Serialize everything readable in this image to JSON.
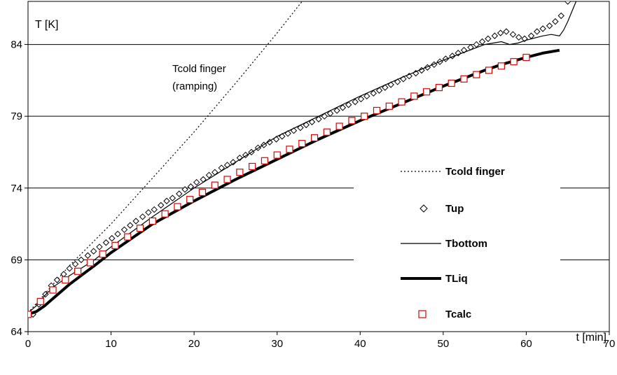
{
  "chart_data": {
    "type": "line",
    "xlabel": "t [min]",
    "ylabel": "T [K]",
    "xlim": [
      0,
      70
    ],
    "ylim": [
      64,
      87
    ],
    "xticks": [
      "0",
      "10",
      "20",
      "30",
      "40",
      "50",
      "60",
      "70"
    ],
    "yticks": [
      "64",
      "69",
      "74",
      "79",
      "84"
    ],
    "ytick_values": [
      64,
      69,
      74,
      79,
      84
    ],
    "xtick_values": [
      0,
      10,
      20,
      30,
      40,
      50,
      60,
      70
    ],
    "grid": "horizontal",
    "legend_position": "bottom-right",
    "annotation": [
      "Tcold finger",
      "(ramping)"
    ],
    "series": [
      {
        "name": "Tcold finger",
        "style": "dotted",
        "x": [
          0,
          5,
          10,
          15,
          20,
          25,
          30,
          33
        ],
        "y": [
          65.3,
          68.6,
          71.5,
          74.7,
          77.9,
          81.3,
          84.8,
          87.0
        ]
      },
      {
        "name": "Tup",
        "style": "diamond",
        "x": [
          0.6,
          1.3,
          2.1,
          2.8,
          3.5,
          4.3,
          5.0,
          5.7,
          6.4,
          7.2,
          7.9,
          8.6,
          9.4,
          10.1,
          10.8,
          11.6,
          12.3,
          13.0,
          13.8,
          14.5,
          15.2,
          16.0,
          16.7,
          17.4,
          18.2,
          18.9,
          19.6,
          20.3,
          21.1,
          21.8,
          22.5,
          23.3,
          24.0,
          24.7,
          25.5,
          26.2,
          26.9,
          27.7,
          28.4,
          29.1,
          29.9,
          30.6,
          31.3,
          32.0,
          32.8,
          33.5,
          34.2,
          35.0,
          35.7,
          36.4,
          37.2,
          37.9,
          38.6,
          39.4,
          40.1,
          40.8,
          41.6,
          42.3,
          43.0,
          43.7,
          44.5,
          45.2,
          45.9,
          46.7,
          47.4,
          48.1,
          48.9,
          49.6,
          50.3,
          51.1,
          51.8,
          52.5,
          53.3,
          54.0,
          54.7,
          55.4,
          56.2,
          56.9,
          57.6,
          58.4,
          59.1,
          59.8,
          60.6,
          61.3,
          62.0,
          62.8,
          63.5,
          64.2,
          65.0,
          65.7
        ],
        "y": [
          65.2,
          65.9,
          66.6,
          67.2,
          67.6,
          68.0,
          68.4,
          68.7,
          69.0,
          69.3,
          69.6,
          69.9,
          70.2,
          70.5,
          70.8,
          71.1,
          71.4,
          71.7,
          72.0,
          72.3,
          72.5,
          72.8,
          73.1,
          73.3,
          73.6,
          73.9,
          74.1,
          74.4,
          74.6,
          74.9,
          75.1,
          75.4,
          75.6,
          75.8,
          76.1,
          76.3,
          76.5,
          76.8,
          77.0,
          77.2,
          77.4,
          77.6,
          77.8,
          78.0,
          78.2,
          78.4,
          78.6,
          78.8,
          79.0,
          79.2,
          79.4,
          79.6,
          79.8,
          80.0,
          80.2,
          80.4,
          80.6,
          80.8,
          81.0,
          81.2,
          81.4,
          81.6,
          81.8,
          82.0,
          82.2,
          82.4,
          82.6,
          82.8,
          83.0,
          83.2,
          83.4,
          83.6,
          83.8,
          84.0,
          84.2,
          84.4,
          84.6,
          84.8,
          84.9,
          84.7,
          84.5,
          84.4,
          84.6,
          84.9,
          85.1,
          85.3,
          85.6,
          86.0,
          87.0,
          88.0
        ],
        "y_note": ""
      },
      {
        "name": "Tbottom",
        "style": "thin-line",
        "x": [
          0,
          1,
          2,
          3,
          5,
          8,
          10,
          15,
          20,
          25,
          30,
          35,
          40,
          45,
          50,
          55,
          57,
          58,
          59,
          60,
          62,
          63,
          64,
          64.5,
          65,
          65.5,
          66
        ],
        "y": [
          65.3,
          65.8,
          66.5,
          67.1,
          67.9,
          69.0,
          69.9,
          72.0,
          74.0,
          75.8,
          77.6,
          79.0,
          80.4,
          81.7,
          82.9,
          84.0,
          84.2,
          84.0,
          84.1,
          84.3,
          84.6,
          84.7,
          84.6,
          85.0,
          85.6,
          86.3,
          87.0
        ]
      },
      {
        "name": "TLiq",
        "style": "thick-line",
        "x": [
          0,
          1,
          2,
          3,
          5,
          8,
          10,
          13,
          15,
          20,
          25,
          30,
          35,
          40,
          45,
          50,
          55,
          57,
          60,
          62,
          64
        ],
        "y": [
          65.2,
          65.4,
          65.8,
          66.3,
          67.3,
          68.6,
          69.5,
          70.7,
          71.5,
          73.1,
          74.6,
          76.0,
          77.4,
          78.7,
          79.9,
          81.1,
          82.2,
          82.6,
          83.1,
          83.4,
          83.6
        ]
      },
      {
        "name": "Tcalc",
        "style": "square",
        "x": [
          0,
          1.5,
          3,
          4.5,
          6,
          7.5,
          9,
          10.5,
          12,
          13.5,
          15,
          16.5,
          18,
          19.5,
          21,
          22.5,
          24,
          25.5,
          27,
          28.5,
          30,
          31.5,
          33,
          34.5,
          36,
          37.5,
          39,
          40.5,
          42,
          43.5,
          45,
          46.5,
          48,
          49.5,
          51,
          52.5,
          54,
          55.5,
          57,
          58.5,
          60
        ],
        "y": [
          65.2,
          66.1,
          66.9,
          67.6,
          68.2,
          68.8,
          69.4,
          70.0,
          70.6,
          71.2,
          71.7,
          72.2,
          72.7,
          73.2,
          73.7,
          74.2,
          74.6,
          75.1,
          75.5,
          75.9,
          76.3,
          76.7,
          77.1,
          77.5,
          77.9,
          78.3,
          78.7,
          79.0,
          79.4,
          79.7,
          80.0,
          80.4,
          80.7,
          81.0,
          81.3,
          81.6,
          81.9,
          82.2,
          82.5,
          82.8,
          83.1
        ]
      }
    ]
  }
}
